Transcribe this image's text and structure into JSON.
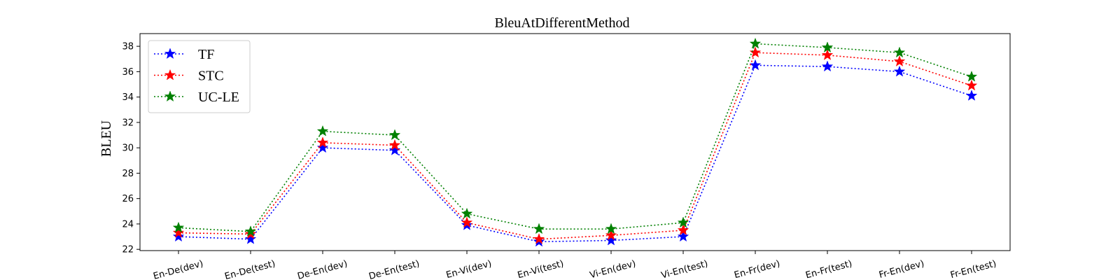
{
  "chart_data": {
    "type": "line",
    "title": "BleuAtDifferentMethod",
    "xlabel": "",
    "ylabel": "BLEU",
    "categories": [
      "En-De(dev)",
      "En-De(test)",
      "De-En(dev)",
      "De-En(test)",
      "En-Vi(dev)",
      "En-Vi(test)",
      "Vi-En(dev)",
      "Vi-En(test)",
      "En-Fr(dev)",
      "En-Fr(test)",
      "Fr-En(dev)",
      "Fr-En(test)"
    ],
    "ylim": [
      21.9,
      39.0
    ],
    "yticks": [
      22,
      24,
      26,
      28,
      30,
      32,
      34,
      36,
      38
    ],
    "grid": false,
    "legend_position": "upper-left",
    "marker": "star",
    "line_style": "dotted",
    "series": [
      {
        "name": "TF",
        "color": "#0000ff",
        "values": [
          23.0,
          22.8,
          30.0,
          29.8,
          23.9,
          22.6,
          22.7,
          23.0,
          36.5,
          36.4,
          36.0,
          34.1
        ]
      },
      {
        "name": "STC",
        "color": "#ff0000",
        "values": [
          23.3,
          23.2,
          30.4,
          30.2,
          24.1,
          22.8,
          23.1,
          23.5,
          37.5,
          37.3,
          36.8,
          34.9
        ]
      },
      {
        "name": "UC-LE",
        "color": "#008000",
        "values": [
          23.7,
          23.4,
          31.3,
          31.0,
          24.8,
          23.6,
          23.6,
          24.1,
          38.2,
          37.9,
          37.5,
          35.6
        ]
      }
    ]
  }
}
